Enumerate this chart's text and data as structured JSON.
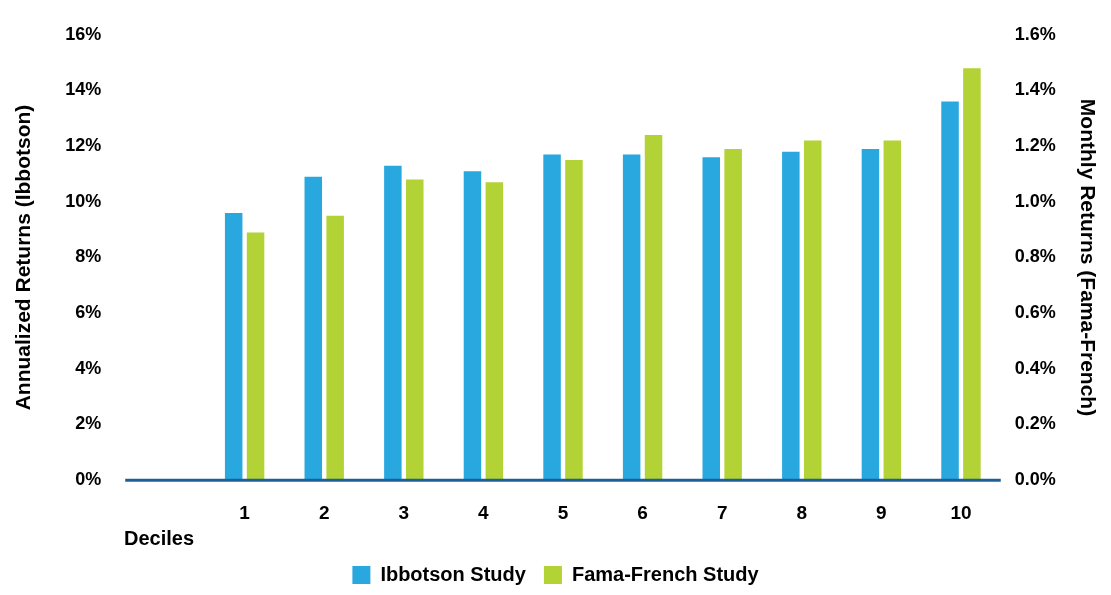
{
  "chart_data": {
    "type": "bar",
    "categories": [
      "1",
      "2",
      "3",
      "4",
      "5",
      "6",
      "7",
      "8",
      "9",
      "10"
    ],
    "xlabel": "Deciles",
    "ylabel": "Annualized Returns (Ibbotson)",
    "y2label": "Monthly Returns (Fama-French)",
    "series": [
      {
        "name": "Ibbotson Study",
        "color": "#29a8e0",
        "values": [
          9.6,
          10.9,
          11.3,
          11.1,
          11.7,
          11.7,
          11.6,
          11.8,
          11.9,
          13.6
        ]
      },
      {
        "name": "Fama-French Study",
        "color": "#b2d235",
        "axis": "y2",
        "values": [
          0.89,
          0.95,
          1.08,
          1.07,
          1.15,
          1.24,
          1.19,
          1.22,
          1.22,
          1.48
        ]
      }
    ],
    "ylim": [
      0,
      16
    ],
    "yticks": [
      {
        "value": 0,
        "label": "0%"
      },
      {
        "value": 2,
        "label": "2%"
      },
      {
        "value": 4,
        "label": "4%"
      },
      {
        "value": 6,
        "label": "6%"
      },
      {
        "value": 8,
        "label": "8%"
      },
      {
        "value": 10,
        "label": "10%"
      },
      {
        "value": 12,
        "label": "12%"
      },
      {
        "value": 14,
        "label": "14%"
      },
      {
        "value": 16,
        "label": "16%"
      }
    ],
    "y2lim": [
      0,
      1.6
    ],
    "y2ticks": [
      {
        "value": 0,
        "label": "0.0%"
      },
      {
        "value": 0.2,
        "label": "0.2%"
      },
      {
        "value": 0.4,
        "label": "0.4%"
      },
      {
        "value": 0.6,
        "label": "0.6%"
      },
      {
        "value": 0.8,
        "label": "0.8%"
      },
      {
        "value": 1.0,
        "label": "1.0%"
      },
      {
        "value": 1.2,
        "label": "1.2%"
      },
      {
        "value": 1.4,
        "label": "1.4%"
      },
      {
        "value": 1.6,
        "label": "1.6%"
      }
    ],
    "grid": false,
    "legend": "bottom"
  }
}
